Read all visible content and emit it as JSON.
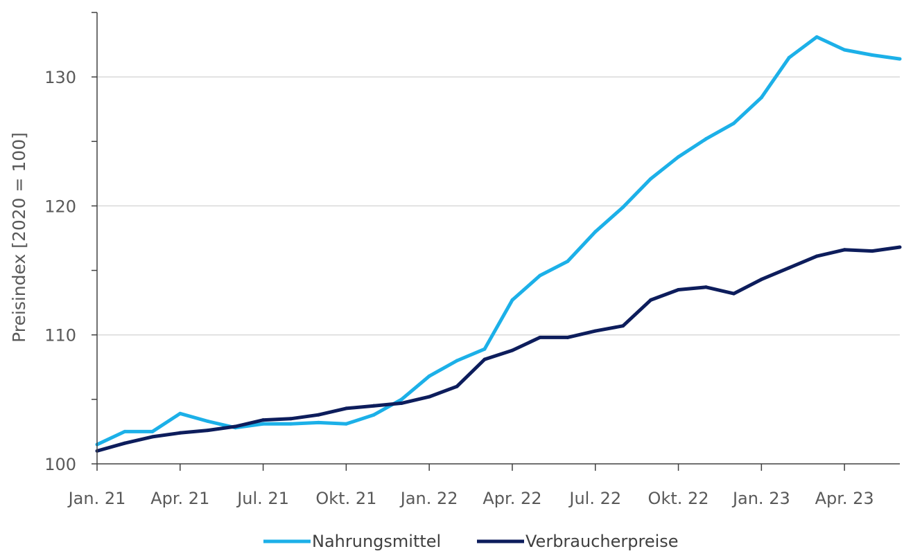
{
  "chart_data": {
    "type": "line",
    "ylabel": "Preisindex [2020 = 100]",
    "xlabel": "",
    "ylim": [
      100,
      135
    ],
    "yticks": [
      100,
      110,
      120,
      130
    ],
    "grid": true,
    "legend_position": "bottom",
    "x_tick_labels": [
      "Jan. 21",
      "Apr. 21",
      "Jul. 21",
      "Okt. 21",
      "Jan. 22",
      "Apr. 22",
      "Jul. 22",
      "Okt. 22",
      "Jan. 23",
      "Apr. 23"
    ],
    "x": [
      "2021-01",
      "2021-02",
      "2021-03",
      "2021-04",
      "2021-05",
      "2021-06",
      "2021-07",
      "2021-08",
      "2021-09",
      "2021-10",
      "2021-11",
      "2021-12",
      "2022-01",
      "2022-02",
      "2022-03",
      "2022-04",
      "2022-05",
      "2022-06",
      "2022-07",
      "2022-08",
      "2022-09",
      "2022-10",
      "2022-11",
      "2022-12",
      "2023-01",
      "2023-02",
      "2023-03",
      "2023-04",
      "2023-05",
      "2023-06"
    ],
    "series": [
      {
        "name": "Nahrungsmittel",
        "color": "#1cb0e8",
        "values": [
          101.5,
          102.5,
          102.5,
          103.9,
          103.3,
          102.8,
          103.1,
          103.1,
          103.2,
          103.1,
          103.8,
          105.0,
          106.8,
          108.0,
          108.9,
          112.7,
          114.6,
          115.7,
          118.0,
          119.9,
          122.1,
          123.8,
          125.2,
          126.4,
          128.4,
          131.5,
          133.1,
          132.1,
          131.7,
          131.4
        ]
      },
      {
        "name": "Verbraucherpreise",
        "color": "#0d1d5c",
        "values": [
          101.0,
          101.6,
          102.1,
          102.4,
          102.6,
          102.9,
          103.4,
          103.5,
          103.8,
          104.3,
          104.5,
          104.7,
          105.2,
          106.0,
          108.1,
          108.8,
          109.8,
          109.8,
          110.3,
          110.7,
          112.7,
          113.5,
          113.7,
          113.2,
          114.3,
          115.2,
          116.1,
          116.6,
          116.5,
          116.8
        ]
      }
    ]
  }
}
